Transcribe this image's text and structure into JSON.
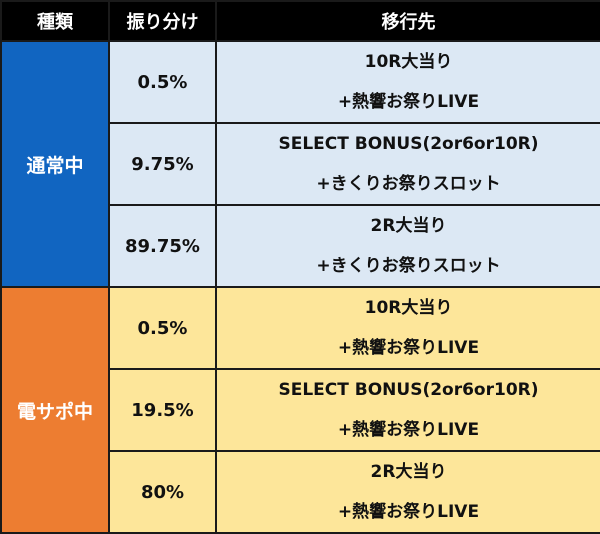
{
  "headers": {
    "type": "種類",
    "rate": "振り分け",
    "destination": "移行先"
  },
  "groups": [
    {
      "name": "通常中",
      "label_color": "#1165c1",
      "row_color": "#dce8f4",
      "rows": [
        {
          "rate": "0.5%",
          "dest_line1": "10R大当り",
          "dest_line2": "+熱響お祭りLIVE"
        },
        {
          "rate": "9.75%",
          "dest_line1": "SELECT BONUS(2or6or10R)",
          "dest_line2": "+きくりお祭りスロット"
        },
        {
          "rate": "89.75%",
          "dest_line1": "2R大当り",
          "dest_line2": "+きくりお祭りスロット"
        }
      ]
    },
    {
      "name": "電サポ中",
      "label_color": "#ed7d31",
      "row_color": "#fde69a",
      "rows": [
        {
          "rate": "0.5%",
          "dest_line1": "10R大当り",
          "dest_line2": "+熱響お祭りLIVE"
        },
        {
          "rate": "19.5%",
          "dest_line1": "SELECT BONUS(2or6or10R)",
          "dest_line2": "+熱響お祭りLIVE"
        },
        {
          "rate": "80%",
          "dest_line1": "2R大当り",
          "dest_line2": "+熱響お祭りLIVE"
        }
      ]
    }
  ]
}
